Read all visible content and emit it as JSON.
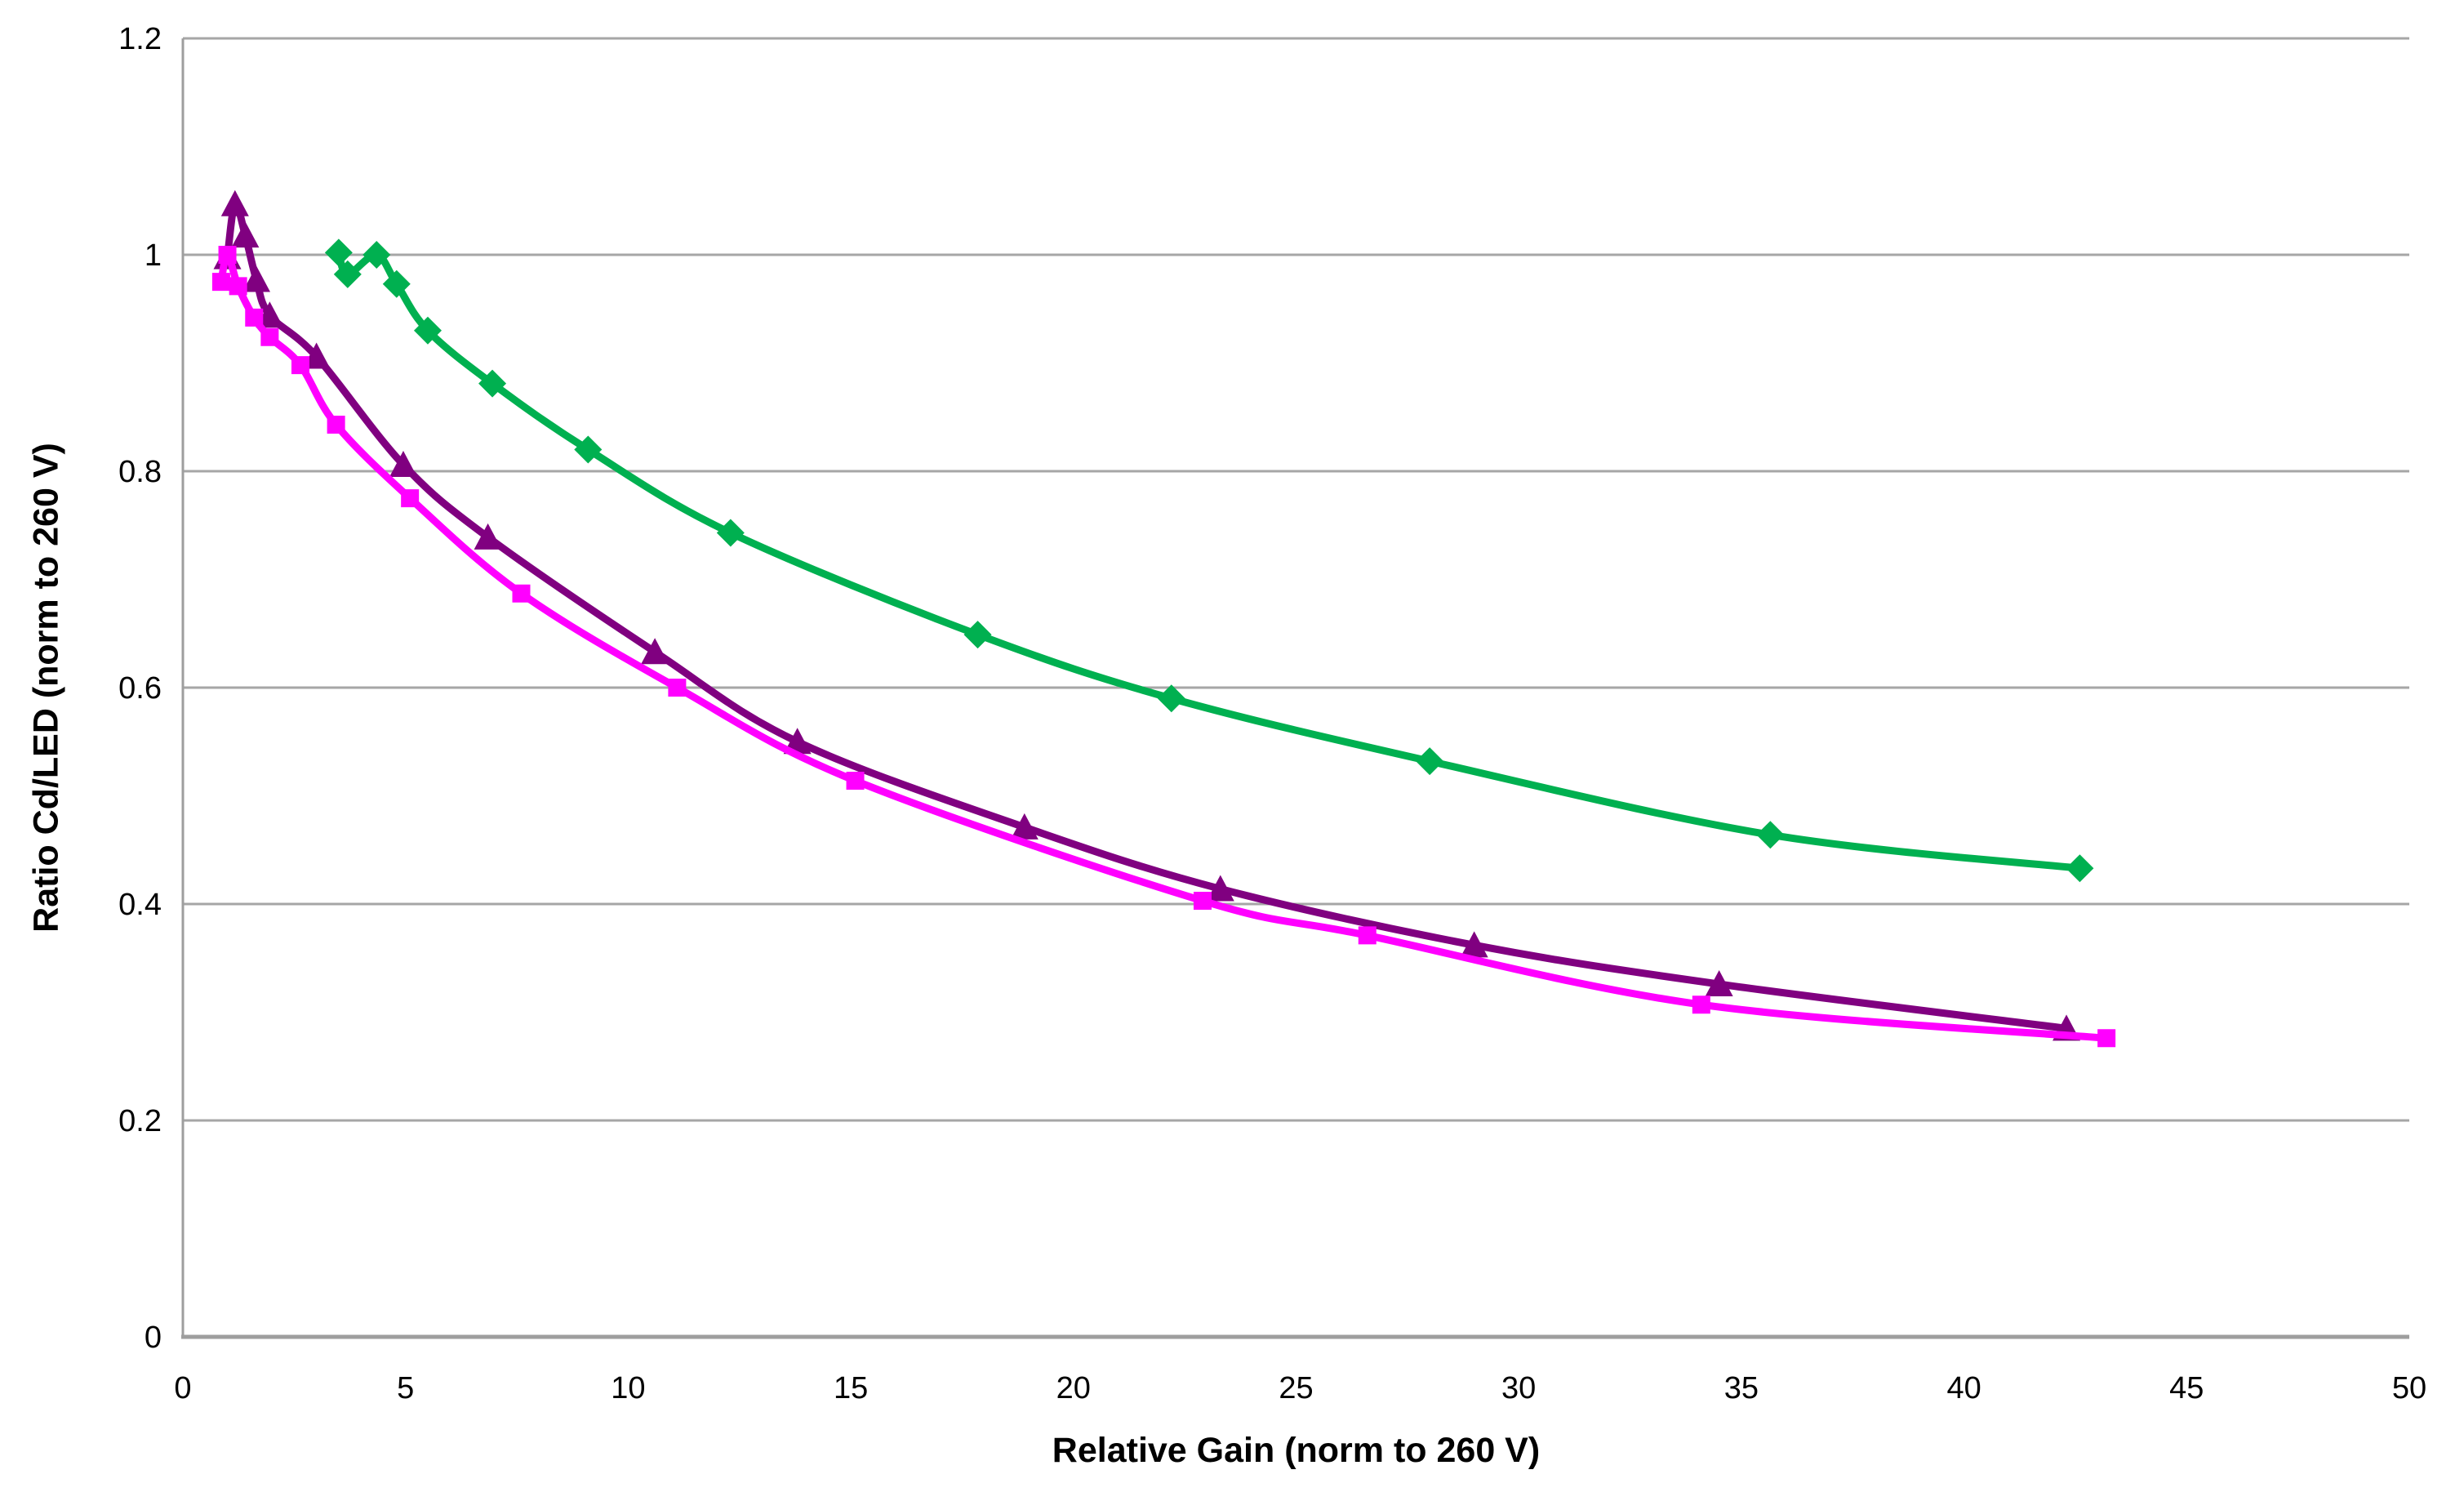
{
  "colors": {
    "background": "#FFFFFF",
    "gridline": "#A6A6A6",
    "axis_line": "#9E9E9E",
    "text": "#000000",
    "green_series": "#00B050",
    "purple_series": "#800080",
    "magenta_series": "#FF00FF"
  },
  "chart_data": {
    "type": "line",
    "subtype": "scatter-with-smooth-lines-and-markers",
    "title": "",
    "xlabel": "Relative Gain (norm to 260 V)",
    "ylabel": "Ratio Cd/LED (norm to 260 V)",
    "xlim": [
      0,
      50
    ],
    "ylim": [
      0,
      1.2
    ],
    "x_tick_values": [
      0,
      5,
      10,
      15,
      20,
      25,
      30,
      35,
      40,
      45,
      50
    ],
    "x_tick_labels": [
      "0",
      "5",
      "10",
      "15",
      "20",
      "25",
      "30",
      "35",
      "40",
      "45",
      "50"
    ],
    "y_tick_values": [
      0,
      0.2,
      0.4,
      0.6,
      0.8,
      1.0,
      1.2
    ],
    "y_tick_labels": [
      "0",
      "0.2",
      "0.4",
      "0.6",
      "0.8",
      "1",
      "1.2"
    ],
    "grid": "horizontal-only",
    "legend": "none",
    "line_style": "smooth",
    "series": [
      {
        "name": "green-diamond",
        "marker": "diamond",
        "color": "#00B050",
        "points": [
          [
            3.5,
            1.002
          ],
          [
            3.7,
            0.982
          ],
          [
            4.35,
            1.0
          ],
          [
            4.8,
            0.973
          ],
          [
            5.5,
            0.93
          ],
          [
            6.95,
            0.881
          ],
          [
            9.1,
            0.82
          ],
          [
            12.3,
            0.743
          ],
          [
            17.85,
            0.649
          ],
          [
            22.2,
            0.59
          ],
          [
            28.0,
            0.532
          ],
          [
            35.65,
            0.464
          ],
          [
            42.6,
            0.433
          ]
        ]
      },
      {
        "name": "purple-triangle",
        "marker": "triangle",
        "color": "#800080",
        "points": [
          [
            1.0,
            0.998
          ],
          [
            1.17,
            1.047
          ],
          [
            1.4,
            1.018
          ],
          [
            1.65,
            0.977
          ],
          [
            1.95,
            0.944
          ],
          [
            3.0,
            0.906
          ],
          [
            4.95,
            0.806
          ],
          [
            6.85,
            0.739
          ],
          [
            10.6,
            0.633
          ],
          [
            13.8,
            0.55
          ],
          [
            18.9,
            0.471
          ],
          [
            23.3,
            0.414
          ],
          [
            29.0,
            0.362
          ],
          [
            34.5,
            0.326
          ],
          [
            42.3,
            0.285
          ]
        ]
      },
      {
        "name": "magenta-square",
        "marker": "square",
        "color": "#FF00FF",
        "points": [
          [
            0.86,
            0.975
          ],
          [
            1.0,
            1.0
          ],
          [
            1.24,
            0.971
          ],
          [
            1.6,
            0.942
          ],
          [
            1.95,
            0.924
          ],
          [
            2.64,
            0.898
          ],
          [
            3.44,
            0.843
          ],
          [
            5.1,
            0.775
          ],
          [
            7.6,
            0.687
          ],
          [
            11.1,
            0.6
          ],
          [
            15.1,
            0.514
          ],
          [
            22.9,
            0.403
          ],
          [
            26.6,
            0.371
          ],
          [
            34.1,
            0.307
          ],
          [
            43.2,
            0.276
          ]
        ]
      }
    ]
  }
}
